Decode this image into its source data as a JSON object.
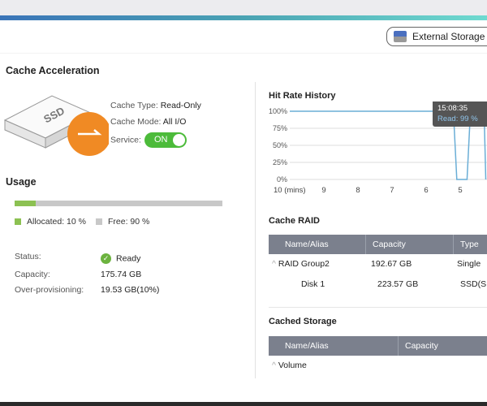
{
  "header": {
    "external_storage_label": "External Storage"
  },
  "cache": {
    "title": "Cache Acceleration",
    "ssd_label": "SSD",
    "type_label": "Cache Type:",
    "type_value": "Read-Only",
    "mode_label": "Cache Mode:",
    "mode_value": "All I/O",
    "service_label": "Service:",
    "service_value": "ON"
  },
  "usage": {
    "title": "Usage",
    "allocated_percent": 10,
    "allocated_label": "Allocated: 10 %",
    "free_label": "Free: 90 %",
    "colors": {
      "allocated": "#8cc152",
      "free": "#c8c8c8"
    },
    "status_label": "Status:",
    "status_value": "Ready",
    "capacity_label": "Capacity:",
    "capacity_value": "175.74 GB",
    "op_label": "Over-provisioning:",
    "op_value": "19.53 GB(10%)"
  },
  "chart_data": {
    "type": "line",
    "title": "Hit Rate History",
    "x_ticks": [
      "10 (mins)",
      "9",
      "8",
      "7",
      "6",
      "5"
    ],
    "y_ticks": [
      "100%",
      "75%",
      "50%",
      "25%",
      "0%"
    ],
    "ylim": [
      0,
      100
    ],
    "x_reversed": true,
    "series": [
      {
        "x": [
          10,
          6.2,
          5.2,
          5.1,
          4.8,
          4.7,
          4.3,
          4.25
        ],
        "y": [
          100,
          100,
          100,
          0,
          0,
          100,
          100,
          0
        ]
      }
    ],
    "tooltip": {
      "time": "15:08:35",
      "value": "Read: 99 %"
    },
    "line_color": "#6aaed6"
  },
  "cache_raid": {
    "title": "Cache RAID",
    "columns": [
      "Name/Alias",
      "Capacity",
      "Type"
    ],
    "rows": [
      {
        "name": "RAID Group2",
        "capacity": "192.67 GB",
        "type": "Single"
      },
      {
        "name": "Disk 1",
        "capacity": "223.57 GB",
        "type": "SSD(S"
      }
    ]
  },
  "cached_storage": {
    "title": "Cached Storage",
    "columns": [
      "Name/Alias",
      "Capacity"
    ],
    "rows": [
      {
        "name": "Volume"
      }
    ]
  }
}
